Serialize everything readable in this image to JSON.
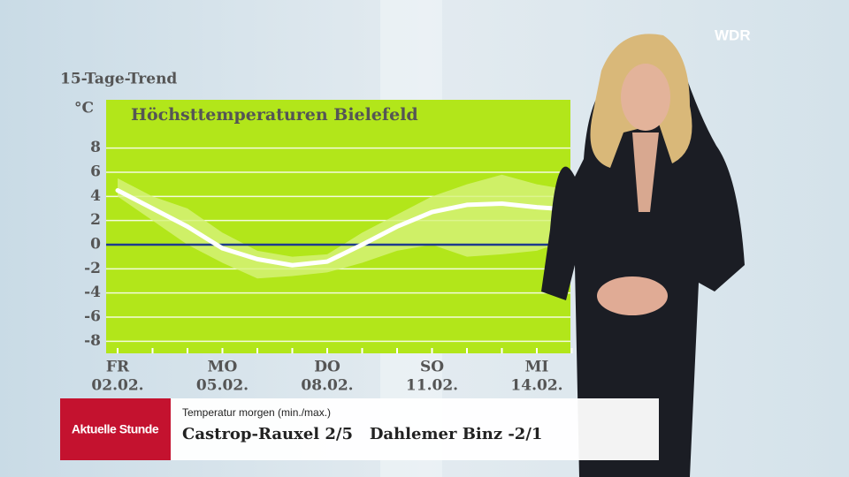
{
  "chart_data": {
    "type": "line",
    "heading": "15-Tage-Trend",
    "title": "Höchsttemperaturen Bielefeld",
    "y_label": "°C",
    "categories": [
      "FR",
      null,
      null,
      "MO",
      null,
      null,
      "DO",
      null,
      null,
      "SO",
      null,
      null,
      "MI",
      null,
      null
    ],
    "dates": [
      "02.02.",
      null,
      null,
      "05.02.",
      null,
      null,
      "08.02.",
      null,
      null,
      "11.02.",
      null,
      null,
      "14.02.",
      null,
      null
    ],
    "values": [
      4.5,
      3,
      1.5,
      -0.3,
      -1.2,
      -1.7,
      -1.4,
      0,
      1.5,
      2.7,
      3.3,
      3.4,
      3.1,
      2.9,
      null
    ],
    "band": {
      "high": [
        5.5,
        4,
        3,
        1,
        -0.5,
        -1,
        -0.8,
        1,
        2.5,
        4,
        5,
        5.8,
        5,
        4.5,
        null
      ],
      "low": [
        4,
        2,
        0,
        -1.5,
        -2.8,
        -2.6,
        -2.3,
        -1.5,
        -0.5,
        0,
        -1,
        -0.8,
        -0.5,
        0.5,
        null
      ]
    },
    "color": "#ffffff",
    "band_color": "#d6f27a",
    "plot_color": "#b2e61a",
    "zero_line_color": "#1f3c8c",
    "ylim": [
      -9,
      12
    ],
    "yticks": [
      8,
      6,
      4,
      2,
      0,
      -2,
      -4,
      -6,
      -8
    ],
    "grid": true
  },
  "lower_third": {
    "brand": "Aktuelle Stunde",
    "caption": "Temperatur morgen (min./max.)",
    "text": "Castrop-Rauxel 2/5   Dahlemer Binz -2/1"
  },
  "logo": "WDR"
}
